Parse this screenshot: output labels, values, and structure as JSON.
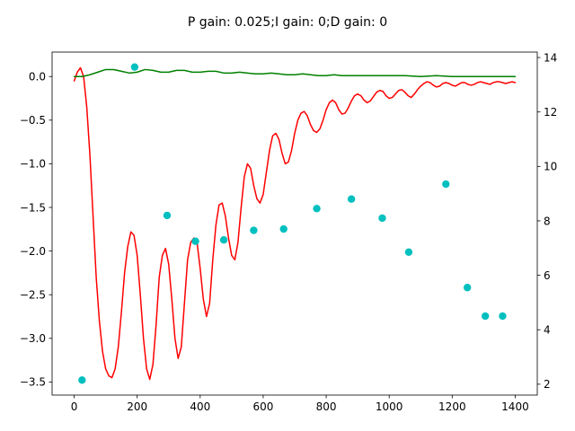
{
  "chart_data": {
    "type": "line",
    "title": "P gain: 0.025;I gain: 0;D gain: 0",
    "xlabel": "",
    "ylabel": "",
    "xlim": [
      -70,
      1470
    ],
    "ylim": [
      -3.65,
      0.28
    ],
    "y2lim": [
      1.6,
      14.2
    ],
    "x_ticks": [
      0,
      200,
      400,
      600,
      800,
      1000,
      1200,
      1400
    ],
    "y_ticks": [
      0.0,
      -0.5,
      -1.0,
      -1.5,
      -2.0,
      -2.5,
      -3.0,
      -3.5
    ],
    "y_tick_labels": [
      "0.0",
      "−0.5",
      "−1.0",
      "−1.5",
      "−2.0",
      "−2.5",
      "−3.0",
      "−3.5"
    ],
    "y2_ticks": [
      2,
      4,
      6,
      8,
      10,
      12,
      14
    ],
    "grid": false,
    "colors": {
      "red": "#ff0000",
      "green": "#008000",
      "cyan": "#00bfbf"
    },
    "series": [
      {
        "color": "#ff0000",
        "axis": "left",
        "style": "line",
        "x": [
          0,
          10,
          20,
          30,
          40,
          50,
          60,
          70,
          80,
          90,
          100,
          110,
          120,
          130,
          140,
          150,
          160,
          170,
          180,
          190,
          200,
          210,
          220,
          230,
          240,
          250,
          260,
          270,
          280,
          290,
          300,
          310,
          320,
          330,
          340,
          350,
          360,
          370,
          380,
          390,
          400,
          410,
          420,
          430,
          440,
          450,
          460,
          470,
          480,
          490,
          500,
          510,
          520,
          530,
          540,
          550,
          560,
          570,
          580,
          590,
          600,
          610,
          620,
          630,
          640,
          650,
          660,
          670,
          680,
          690,
          700,
          710,
          720,
          730,
          740,
          750,
          760,
          770,
          780,
          790,
          800,
          810,
          820,
          830,
          840,
          850,
          860,
          870,
          880,
          890,
          900,
          910,
          920,
          930,
          940,
          950,
          960,
          970,
          980,
          990,
          1000,
          1010,
          1020,
          1030,
          1040,
          1050,
          1060,
          1070,
          1080,
          1090,
          1100,
          1110,
          1120,
          1130,
          1140,
          1150,
          1160,
          1170,
          1180,
          1190,
          1200,
          1210,
          1220,
          1230,
          1240,
          1250,
          1260,
          1270,
          1280,
          1290,
          1300,
          1310,
          1320,
          1330,
          1340,
          1350,
          1360,
          1370,
          1380,
          1390,
          1400
        ],
        "y": [
          -0.05,
          0.05,
          0.1,
          0.0,
          -0.35,
          -0.9,
          -1.6,
          -2.3,
          -2.8,
          -3.15,
          -3.35,
          -3.43,
          -3.45,
          -3.35,
          -3.1,
          -2.7,
          -2.25,
          -1.95,
          -1.78,
          -1.82,
          -2.05,
          -2.5,
          -3.0,
          -3.35,
          -3.47,
          -3.3,
          -2.85,
          -2.3,
          -2.05,
          -1.97,
          -2.15,
          -2.55,
          -3.0,
          -3.23,
          -3.1,
          -2.6,
          -2.1,
          -1.9,
          -1.85,
          -1.9,
          -2.2,
          -2.55,
          -2.75,
          -2.6,
          -2.1,
          -1.7,
          -1.47,
          -1.45,
          -1.6,
          -1.85,
          -2.05,
          -2.1,
          -1.9,
          -1.5,
          -1.15,
          -1.0,
          -1.05,
          -1.25,
          -1.4,
          -1.45,
          -1.35,
          -1.1,
          -0.85,
          -0.68,
          -0.65,
          -0.72,
          -0.88,
          -1.0,
          -0.98,
          -0.85,
          -0.65,
          -0.5,
          -0.42,
          -0.4,
          -0.45,
          -0.55,
          -0.62,
          -0.64,
          -0.6,
          -0.5,
          -0.38,
          -0.3,
          -0.27,
          -0.3,
          -0.38,
          -0.43,
          -0.42,
          -0.36,
          -0.28,
          -0.22,
          -0.2,
          -0.22,
          -0.27,
          -0.3,
          -0.28,
          -0.23,
          -0.18,
          -0.16,
          -0.17,
          -0.22,
          -0.25,
          -0.24,
          -0.2,
          -0.16,
          -0.15,
          -0.18,
          -0.22,
          -0.24,
          -0.2,
          -0.15,
          -0.11,
          -0.08,
          -0.06,
          -0.07,
          -0.1,
          -0.12,
          -0.11,
          -0.08,
          -0.07,
          -0.08,
          -0.1,
          -0.11,
          -0.09,
          -0.07,
          -0.07,
          -0.09,
          -0.1,
          -0.09,
          -0.07,
          -0.06,
          -0.07,
          -0.08,
          -0.09,
          -0.07,
          -0.06,
          -0.06,
          -0.07,
          -0.08,
          -0.07,
          -0.06,
          -0.07
        ]
      },
      {
        "color": "#008000",
        "axis": "left",
        "style": "line",
        "x": [
          0,
          25,
          50,
          75,
          100,
          125,
          150,
          175,
          200,
          225,
          250,
          275,
          300,
          325,
          350,
          375,
          400,
          425,
          450,
          475,
          500,
          525,
          550,
          575,
          600,
          625,
          650,
          675,
          700,
          725,
          750,
          775,
          800,
          825,
          850,
          875,
          900,
          925,
          950,
          975,
          1000,
          1050,
          1100,
          1150,
          1200,
          1250,
          1300,
          1350,
          1400
        ],
        "y": [
          0.0,
          0.0,
          0.02,
          0.05,
          0.08,
          0.08,
          0.06,
          0.04,
          0.05,
          0.08,
          0.07,
          0.05,
          0.05,
          0.07,
          0.07,
          0.05,
          0.05,
          0.06,
          0.06,
          0.04,
          0.04,
          0.05,
          0.04,
          0.03,
          0.03,
          0.04,
          0.03,
          0.02,
          0.02,
          0.03,
          0.02,
          0.01,
          0.01,
          0.02,
          0.01,
          0.01,
          0.01,
          0.01,
          0.01,
          0.01,
          0.01,
          0.01,
          0.0,
          0.01,
          0.0,
          0.0,
          0.0,
          0.0,
          0.0
        ]
      },
      {
        "color": "#00bfbf",
        "axis": "right",
        "style": "scatter",
        "x": [
          25,
          192,
          295,
          385,
          475,
          570,
          665,
          770,
          880,
          978,
          1062,
          1180,
          1248,
          1305,
          1360
        ],
        "y": [
          2.15,
          13.65,
          8.2,
          7.25,
          7.3,
          7.65,
          7.7,
          8.45,
          8.8,
          8.1,
          6.85,
          9.35,
          5.55,
          4.5,
          4.5
        ]
      }
    ]
  }
}
